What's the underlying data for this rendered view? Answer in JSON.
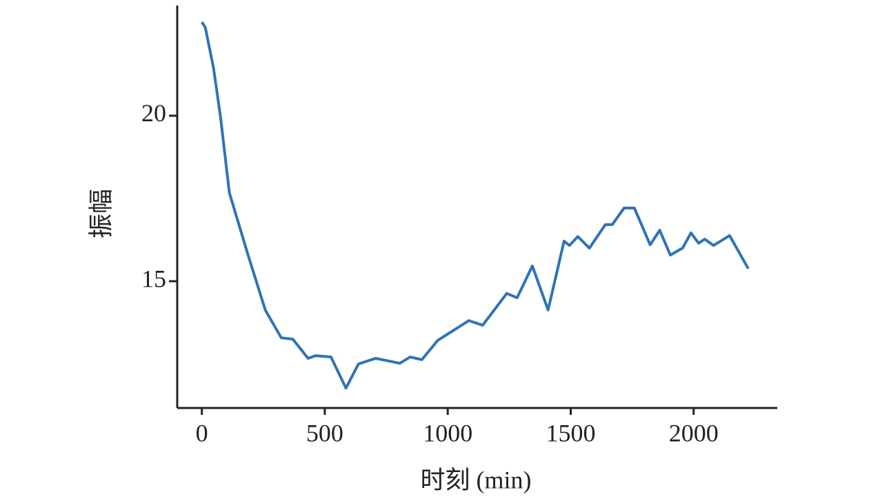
{
  "chart_data": {
    "type": "line",
    "x_label": "时刻 (min)",
    "y_label": "振幅",
    "x": [
      0,
      14,
      48,
      76,
      112,
      146,
      188,
      258,
      323,
      370,
      432,
      463,
      525,
      586,
      637,
      707,
      805,
      847,
      895,
      959,
      1086,
      1142,
      1240,
      1282,
      1344,
      1408,
      1473,
      1495,
      1529,
      1576,
      1641,
      1669,
      1717,
      1759,
      1823,
      1862,
      1905,
      1955,
      1989,
      2020,
      2045,
      2081,
      2146,
      2222
    ],
    "series": [
      {
        "color": "#2f73b8",
        "values": [
          22.83,
          22.67,
          21.42,
          19.96,
          17.67,
          16.83,
          15.79,
          14.13,
          13.29,
          13.25,
          12.67,
          12.75,
          12.71,
          11.77,
          12.5,
          12.67,
          12.52,
          12.71,
          12.63,
          13.21,
          13.81,
          13.67,
          14.63,
          14.5,
          15.46,
          14.13,
          16.21,
          16.08,
          16.35,
          16.0,
          16.71,
          16.71,
          17.21,
          17.21,
          16.1,
          16.54,
          15.79,
          16.0,
          16.46,
          16.15,
          16.27,
          16.08,
          16.38,
          15.38
        ]
      }
    ],
    "xlim": [
      -100,
      2340
    ],
    "ylim": [
      11.17,
      23.33
    ],
    "xticks": [
      0,
      500,
      1000,
      1500,
      2000
    ],
    "yticks": [
      15,
      20
    ]
  }
}
